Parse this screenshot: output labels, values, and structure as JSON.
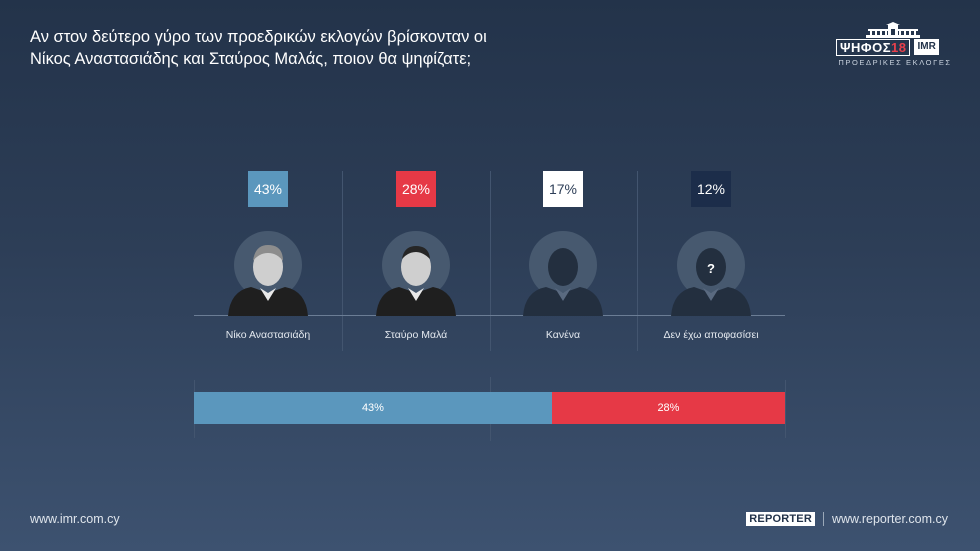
{
  "title": {
    "line1": "Αν στον δεύτερο γύρο των προεδρικών εκλογών βρίσκονταν οι",
    "line2": "Νίκος Αναστασιάδης και Σταύρος Μαλάς, ποιον θα ψηφίζατε;"
  },
  "logo": {
    "word": "ΨΗΦΟΣ",
    "number": "18",
    "imr": "IMR",
    "subtitle": "ΠΡΟΕΔΡΙΚΕΣ ΕΚΛΟΓΕΣ"
  },
  "colors": {
    "anastasiades": "#5b97bd",
    "malas": "#e63946",
    "none": "#ffffff",
    "undecided": "#1c2d4a"
  },
  "chart_data": {
    "type": "bar",
    "categories": [
      "Νίκο Αναστασιάδη",
      "Σταύρο Μαλά",
      "Κανένα",
      "Δεν έχω αποφασίσει"
    ],
    "values": [
      43,
      28,
      17,
      12
    ],
    "value_labels": [
      "43%",
      "28%",
      "17%",
      "12%"
    ],
    "unit": "%",
    "icons": [
      "photo-anastasiades",
      "photo-malas",
      "silhouette-icon",
      "question-silhouette-icon"
    ],
    "question_mark": "?",
    "stacked_bar": {
      "segments": [
        {
          "category": "Νίκο Αναστασιάδη",
          "value": 43,
          "label": "43%"
        },
        {
          "category": "Σταύρο Μαλά",
          "value": 28,
          "label": "28%"
        }
      ]
    }
  },
  "footer": {
    "left_url": "www.imr.com.cy",
    "reporter_badge": "REPORTER",
    "right_url": "www.reporter.com.cy"
  }
}
